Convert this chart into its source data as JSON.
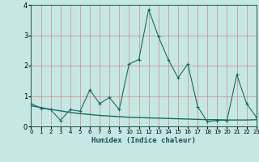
{
  "xlabel": "Humidex (Indice chaleur)",
  "x": [
    0,
    1,
    2,
    3,
    4,
    5,
    6,
    7,
    8,
    9,
    10,
    11,
    12,
    13,
    14,
    15,
    16,
    17,
    18,
    19,
    20,
    21,
    22,
    23
  ],
  "y_main": [
    0.75,
    0.6,
    0.55,
    0.2,
    0.55,
    0.5,
    1.2,
    0.75,
    0.95,
    0.55,
    2.05,
    2.2,
    3.85,
    2.95,
    2.2,
    1.6,
    2.05,
    0.65,
    0.15,
    0.2,
    0.2,
    1.7,
    0.75,
    0.3
  ],
  "y_trend": [
    0.68,
    0.62,
    0.56,
    0.51,
    0.46,
    0.42,
    0.39,
    0.36,
    0.34,
    0.32,
    0.3,
    0.29,
    0.28,
    0.27,
    0.26,
    0.25,
    0.24,
    0.23,
    0.22,
    0.22,
    0.21,
    0.21,
    0.21,
    0.22
  ],
  "line_color": "#1a6b5a",
  "trend_color": "#1a6b5a",
  "bg_color": "#c5e8e5",
  "grid_color": "#d08888",
  "ylim": [
    0,
    4.0
  ],
  "xlim": [
    0,
    23
  ],
  "yticks": [
    0,
    1,
    2,
    3,
    4
  ],
  "xticks": [
    0,
    1,
    2,
    3,
    4,
    5,
    6,
    7,
    8,
    9,
    10,
    11,
    12,
    13,
    14,
    15,
    16,
    17,
    18,
    19,
    20,
    21,
    22,
    23
  ]
}
